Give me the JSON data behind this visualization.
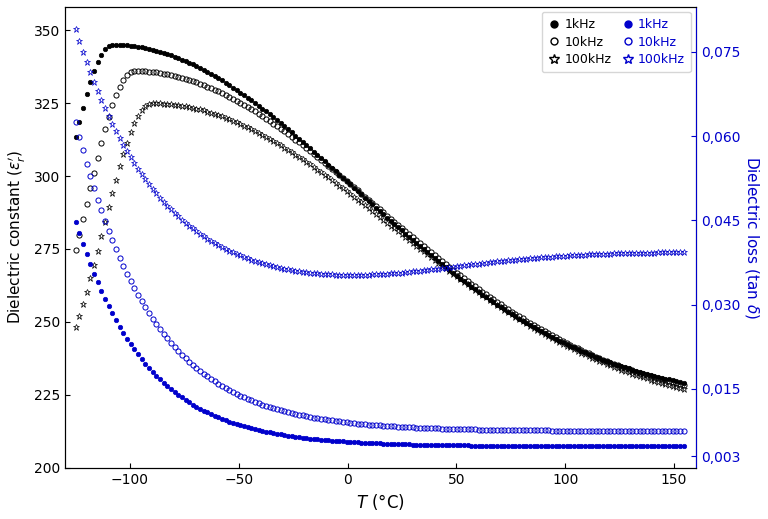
{
  "title": "",
  "xlabel": "$T$ (°C)",
  "ylabel_left": "Dielectric constant ($\\varepsilon_r^{\\prime}$)",
  "ylabel_right": "Dielectric loss (tan $\\delta$)",
  "xlim": [
    -130,
    160
  ],
  "ylim_left": [
    200,
    358
  ],
  "ylim_right": [
    0.001,
    0.083
  ],
  "yticks_left": [
    200,
    225,
    250,
    275,
    300,
    325,
    350
  ],
  "yticks_right": [
    0.003,
    0.015,
    0.03,
    0.045,
    0.06,
    0.075
  ],
  "ytick_labels_right": [
    "0,003",
    "0,015",
    "0,030",
    "0,045",
    "0,060",
    "0,075"
  ],
  "xticks": [
    -100,
    -50,
    0,
    50,
    100,
    150
  ],
  "black_color": "#000000",
  "blue_color": "#0000CC",
  "markersize_circle": 3.2,
  "markersize_star": 4.5,
  "marker_step": 3
}
